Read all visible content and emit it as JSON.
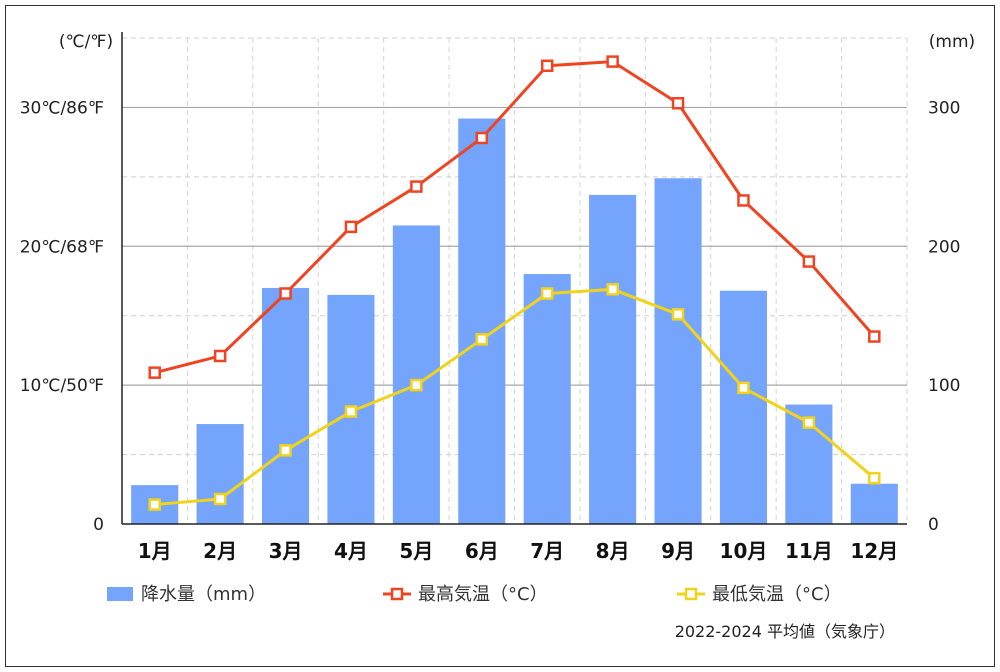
{
  "chart_data": {
    "type": "bar+line",
    "categories": [
      "1月",
      "2月",
      "3月",
      "4月",
      "5月",
      "6月",
      "7月",
      "8月",
      "9月",
      "10月",
      "11月",
      "12月"
    ],
    "series": [
      {
        "name": "降水量（mm）",
        "type": "bar",
        "axis": "right",
        "color": "#74a4fb",
        "values": [
          28,
          72,
          170,
          165,
          215,
          292,
          180,
          237,
          249,
          168,
          86,
          29
        ]
      },
      {
        "name": "最高気温（°C）",
        "type": "line",
        "axis": "left",
        "color": "#ef4422",
        "values": [
          10.9,
          12.1,
          16.6,
          21.4,
          24.3,
          27.8,
          33.0,
          33.3,
          30.3,
          23.3,
          18.9,
          13.5
        ]
      },
      {
        "name": "最低気温（°C）",
        "type": "line",
        "axis": "left",
        "color": "#f1d31c",
        "values": [
          1.4,
          1.8,
          5.3,
          8.1,
          10.0,
          13.3,
          16.6,
          16.9,
          15.1,
          9.8,
          7.3,
          3.3
        ]
      }
    ],
    "y_left": {
      "unit": "(℃/℉)",
      "ylim": [
        0,
        35
      ],
      "ticks": [
        {
          "value": 0,
          "label": "0"
        },
        {
          "value": 10,
          "label": "10℃/50℉"
        },
        {
          "value": 20,
          "label": "20℃/68℉"
        },
        {
          "value": 30,
          "label": "30℃/86℉"
        }
      ]
    },
    "y_right": {
      "unit": "(mm)",
      "ylim": [
        0,
        350
      ],
      "ticks": [
        {
          "value": 0,
          "label": "0"
        },
        {
          "value": 100,
          "label": "100"
        },
        {
          "value": 200,
          "label": "200"
        },
        {
          "value": 300,
          "label": "300"
        }
      ]
    },
    "grid": true,
    "legend_position": "bottom",
    "source_note": "2022-2024 平均値（気象庁）"
  }
}
